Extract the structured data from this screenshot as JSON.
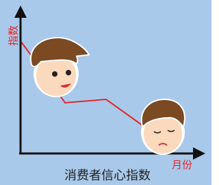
{
  "y_axis_label": "指数",
  "x_axis_label": "月份",
  "title": "消费者信心指数"
}
